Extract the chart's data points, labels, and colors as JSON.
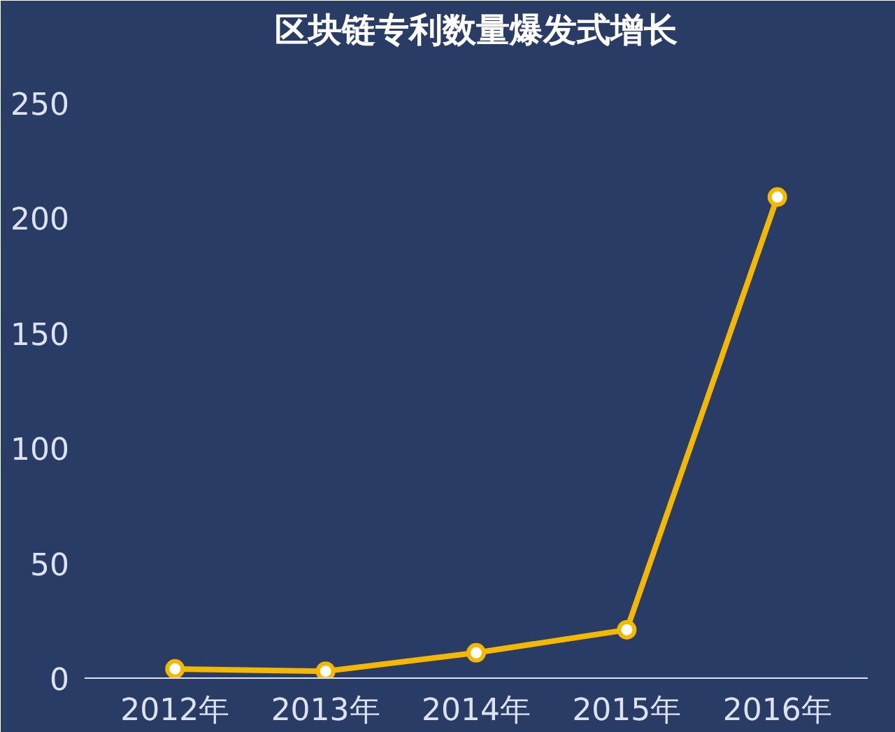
{
  "chart_data": {
    "type": "line",
    "title": "区块链专利数量爆发式增长",
    "categories": [
      "2012年",
      "2013年",
      "2014年",
      "2015年",
      "2016年"
    ],
    "series": [
      {
        "color": "#f5b800",
        "values": [
          4,
          3,
          11,
          21,
          209
        ]
      }
    ],
    "ylim": [
      0,
      270
    ],
    "yticks": [
      0,
      50,
      100,
      150,
      200,
      250
    ],
    "grid": false,
    "marker": "circle",
    "line_style": "solid"
  }
}
